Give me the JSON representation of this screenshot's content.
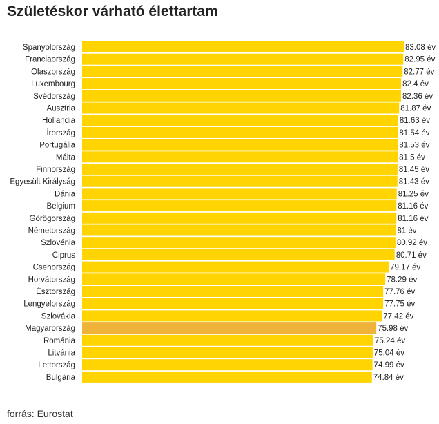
{
  "chart_data": {
    "type": "bar",
    "orientation": "horizontal",
    "title": "Születéskor várható élettartam",
    "unit": "év",
    "categories": [
      "Spanyolország",
      "Franciaország",
      "Olaszország",
      "Luxembourg",
      "Svédország",
      "Ausztria",
      "Hollandia",
      "Írország",
      "Portugália",
      "Málta",
      "Finnország",
      "Egyesült Királyság",
      "Dánia",
      "Belgium",
      "Görögország",
      "Németország",
      "Szlovénia",
      "Ciprus",
      "Csehország",
      "Horvátország",
      "Észtország",
      "Lengyelország",
      "Szlovákia",
      "Magyarország",
      "Románia",
      "Litvánia",
      "Lettország",
      "Bulgária"
    ],
    "values": [
      83.08,
      82.95,
      82.77,
      82.4,
      82.36,
      81.87,
      81.63,
      81.54,
      81.53,
      81.5,
      81.45,
      81.43,
      81.25,
      81.16,
      81.16,
      81,
      80.92,
      80.71,
      79.17,
      78.29,
      77.76,
      77.75,
      77.42,
      75.98,
      75.24,
      75.04,
      74.99,
      74.84
    ],
    "labels": [
      "83.08 év",
      "82.95 év",
      "82.77 év",
      "82.4 év",
      "82.36 év",
      "81.87 év",
      "81.63 év",
      "81.54 év",
      "81.53 év",
      "81.5 év",
      "81.45 év",
      "81.43 év",
      "81.25 év",
      "81.16 év",
      "81.16 év",
      "81 év",
      "80.92 év",
      "80.71 év",
      "79.17 év",
      "78.29 év",
      "77.76 év",
      "77.75 év",
      "77.42 év",
      "75.98 év",
      "75.24 év",
      "75.04 év",
      "74.99 év",
      "74.84 év"
    ],
    "highlight": "Magyarország",
    "xlim": [
      0,
      83.08
    ],
    "grid": false,
    "colors": {
      "bar": "#ffd400",
      "highlight": "#f0b33a"
    }
  },
  "source": "forrás: Eurostat"
}
